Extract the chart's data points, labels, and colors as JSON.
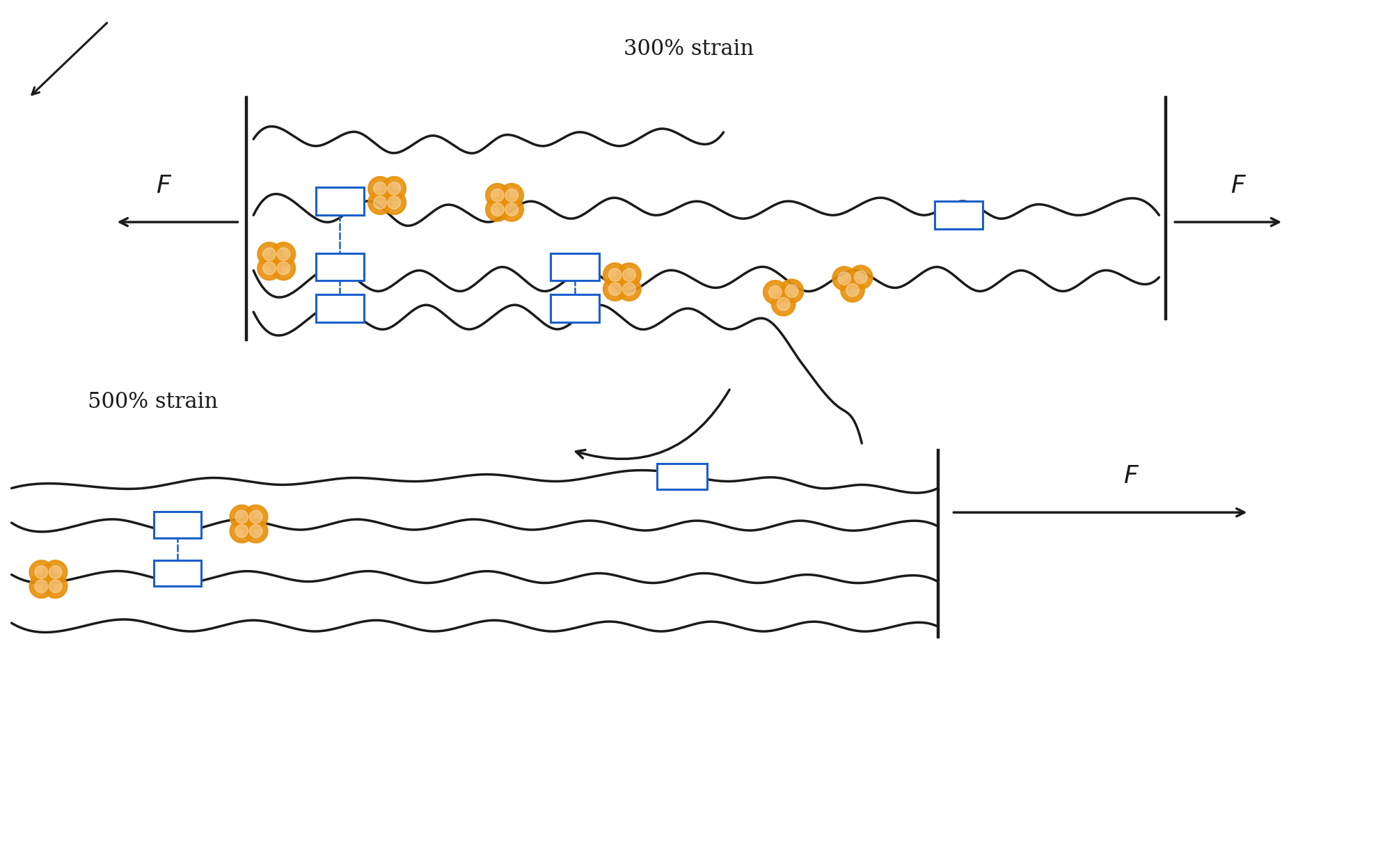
{
  "bg_color": "#ffffff",
  "line_color": "#1a1a1a",
  "box_color": "#1a5fcc",
  "particle_color": "#e8900a",
  "title_300": "300% strain",
  "title_500": "500% strain",
  "title_fontsize": 22,
  "label_fontsize": 26,
  "figsize": [
    19.8,
    12.37
  ]
}
